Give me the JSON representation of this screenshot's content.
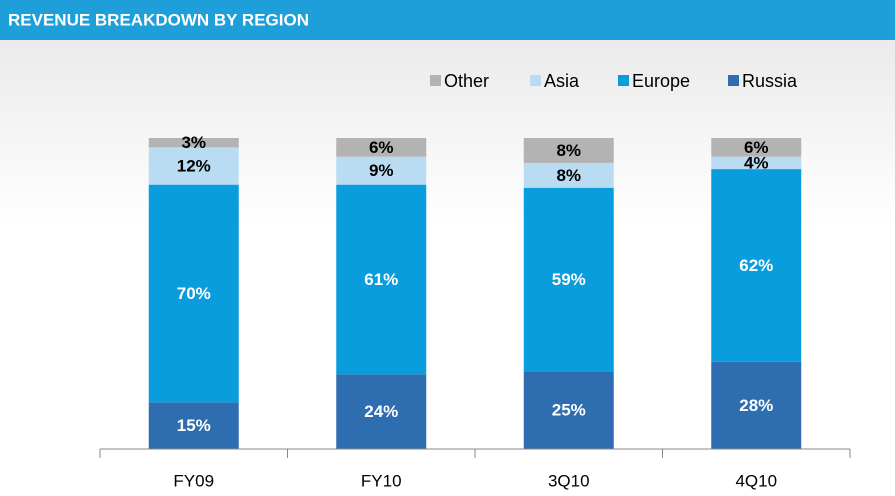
{
  "chart_data": {
    "type": "stacked_bar",
    "title": "REVENUE BREAKDOWN BY REGION",
    "categories": [
      "FY09",
      "FY10",
      "3Q10",
      "4Q10"
    ],
    "series": [
      {
        "name": "Russia",
        "color": "#2e6eb0",
        "values": [
          15,
          24,
          25,
          28
        ],
        "value_labels": [
          "15%",
          "24%",
          "25%",
          "28%"
        ]
      },
      {
        "name": "Europe",
        "color": "#0a9ddd",
        "values": [
          70,
          61,
          59,
          62
        ],
        "value_labels": [
          "70%",
          "61%",
          "59%",
          "62%"
        ]
      },
      {
        "name": "Asia",
        "color": "#b9dcf2",
        "values": [
          12,
          9,
          8,
          4
        ],
        "value_labels": [
          "12%",
          "9%",
          "8%",
          "4%"
        ]
      },
      {
        "name": "Other",
        "color": "#b3b3b3",
        "values": [
          3,
          6,
          8,
          6
        ],
        "value_labels": [
          "3%",
          "6%",
          "8%",
          "6%"
        ]
      }
    ],
    "ylim": [
      0,
      100
    ],
    "legend": "top-right"
  }
}
